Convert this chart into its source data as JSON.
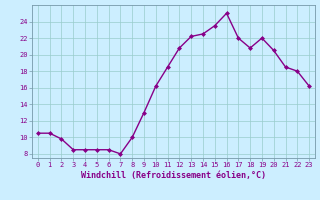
{
  "x": [
    0,
    1,
    2,
    3,
    4,
    5,
    6,
    7,
    8,
    9,
    10,
    11,
    12,
    13,
    14,
    15,
    16,
    17,
    18,
    19,
    20,
    21,
    22,
    23
  ],
  "y": [
    10.5,
    10.5,
    9.8,
    8.5,
    8.5,
    8.5,
    8.5,
    8.0,
    10.0,
    13.0,
    16.2,
    18.5,
    20.8,
    22.2,
    22.5,
    23.5,
    25.0,
    22.0,
    20.8,
    22.0,
    20.5,
    18.5,
    18.0,
    16.2
  ],
  "line_color": "#880088",
  "marker": "D",
  "marker_size": 2.0,
  "bg_color": "#cceeff",
  "grid_color": "#99cccc",
  "xlabel": "Windchill (Refroidissement éolien,°C)",
  "xlabel_color": "#880088",
  "tick_color": "#880088",
  "ylim": [
    7.5,
    26.0
  ],
  "xlim": [
    -0.5,
    23.5
  ],
  "yticks": [
    8,
    10,
    12,
    14,
    16,
    18,
    20,
    22,
    24
  ],
  "xticks": [
    0,
    1,
    2,
    3,
    4,
    5,
    6,
    7,
    8,
    9,
    10,
    11,
    12,
    13,
    14,
    15,
    16,
    17,
    18,
    19,
    20,
    21,
    22,
    23
  ],
  "tick_fontsize": 5.0,
  "xlabel_fontsize": 6.0,
  "linewidth": 1.0,
  "spine_color": "#7799aa"
}
